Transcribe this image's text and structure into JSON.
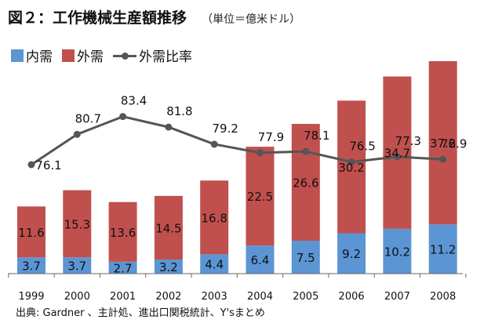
{
  "title": "図２：工作機械生産額推移",
  "unit": "（単位＝億米ドル）",
  "source": "出典: Gardner 、主計処、進出口関税統計、Y'sまとめ",
  "colors": {
    "domestic": "#5b95d4",
    "overseas": "#c0504d",
    "ratio": "#555555"
  },
  "chart_data": {
    "type": "bar",
    "stacked": true,
    "categories": [
      "1999",
      "2000",
      "2001",
      "2002",
      "2003",
      "2004",
      "2005",
      "2006",
      "2007",
      "2008"
    ],
    "series": [
      {
        "name": "内需",
        "kind": "bar",
        "values": [
          3.7,
          3.7,
          2.7,
          3.2,
          4.4,
          6.4,
          7.5,
          9.2,
          10.2,
          11.2
        ]
      },
      {
        "name": "外需",
        "kind": "bar",
        "values": [
          11.6,
          15.3,
          13.6,
          14.5,
          16.8,
          22.5,
          26.6,
          30.2,
          34.7,
          37.2
        ]
      },
      {
        "name": "外需比率",
        "kind": "line",
        "values": [
          76.1,
          80.7,
          83.4,
          81.8,
          79.2,
          77.9,
          78.1,
          76.5,
          77.3,
          76.9
        ]
      }
    ],
    "legend_position": "top-left",
    "grid": false
  }
}
